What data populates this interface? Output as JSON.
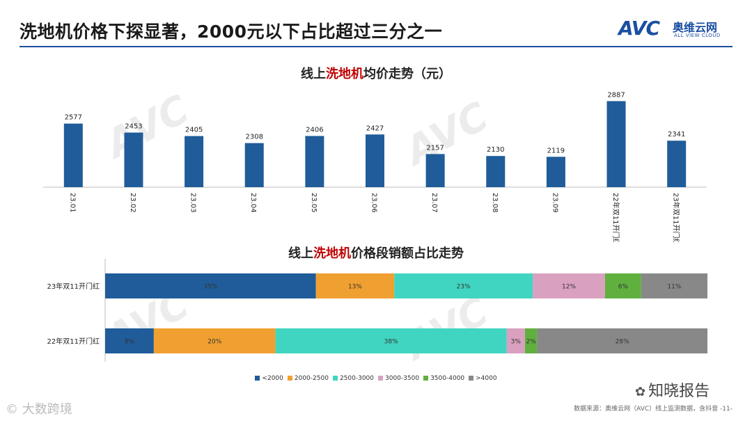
{
  "header": {
    "title": "洗地机价格下探显著，2000元以下占比超过三分之一",
    "logo_mark": "AVC",
    "logo_cn": "奥维云网",
    "logo_en": "ALL VIEW CLOUD"
  },
  "colors": {
    "primary": "#1f5c99",
    "seg": [
      "#1f5c99",
      "#f0a030",
      "#40d5c0",
      "#d9a0c0",
      "#60b040",
      "#888888"
    ]
  },
  "chart_data": [
    {
      "type": "bar",
      "title_prefix": "线上",
      "title_highlight": "洗地机",
      "title_suffix": "均价走势（元）",
      "categories": [
        "23.01",
        "23.02",
        "23.03",
        "23.04",
        "23.05",
        "23.06",
        "23.07",
        "23.08",
        "23.09",
        "22年双11开门红",
        "23年双11开门红"
      ],
      "values": [
        2577,
        2453,
        2405,
        2308,
        2406,
        2427,
        2157,
        2130,
        2119,
        2887,
        2341
      ],
      "xlabel": "",
      "ylabel": "",
      "ylim": [
        1700,
        2900
      ]
    },
    {
      "type": "bar",
      "stacked": true,
      "orientation": "horizontal",
      "percent": true,
      "title_prefix": "线上",
      "title_highlight": "洗地机",
      "title_suffix": "价格段销额占比走势",
      "categories": [
        "23年双11开门红",
        "22年双11开门红"
      ],
      "series": [
        {
          "name": "<2000",
          "values": [
            35,
            8
          ]
        },
        {
          "name": "2000-2500",
          "values": [
            13,
            20
          ]
        },
        {
          "name": "2500-3000",
          "values": [
            23,
            38
          ]
        },
        {
          "name": "3000-3500",
          "values": [
            12,
            3
          ]
        },
        {
          "name": "3500-4000",
          "values": [
            6,
            2
          ]
        },
        {
          "name": ">4000",
          "values": [
            11,
            28
          ]
        }
      ],
      "legend_position": "bottom"
    }
  ],
  "footer": {
    "source": "数据来源：奥维云网（AVC）线上监测数据，含抖音  -11-",
    "wechat_label": "知晓报告",
    "corner_mark": "©  大数跨境"
  }
}
